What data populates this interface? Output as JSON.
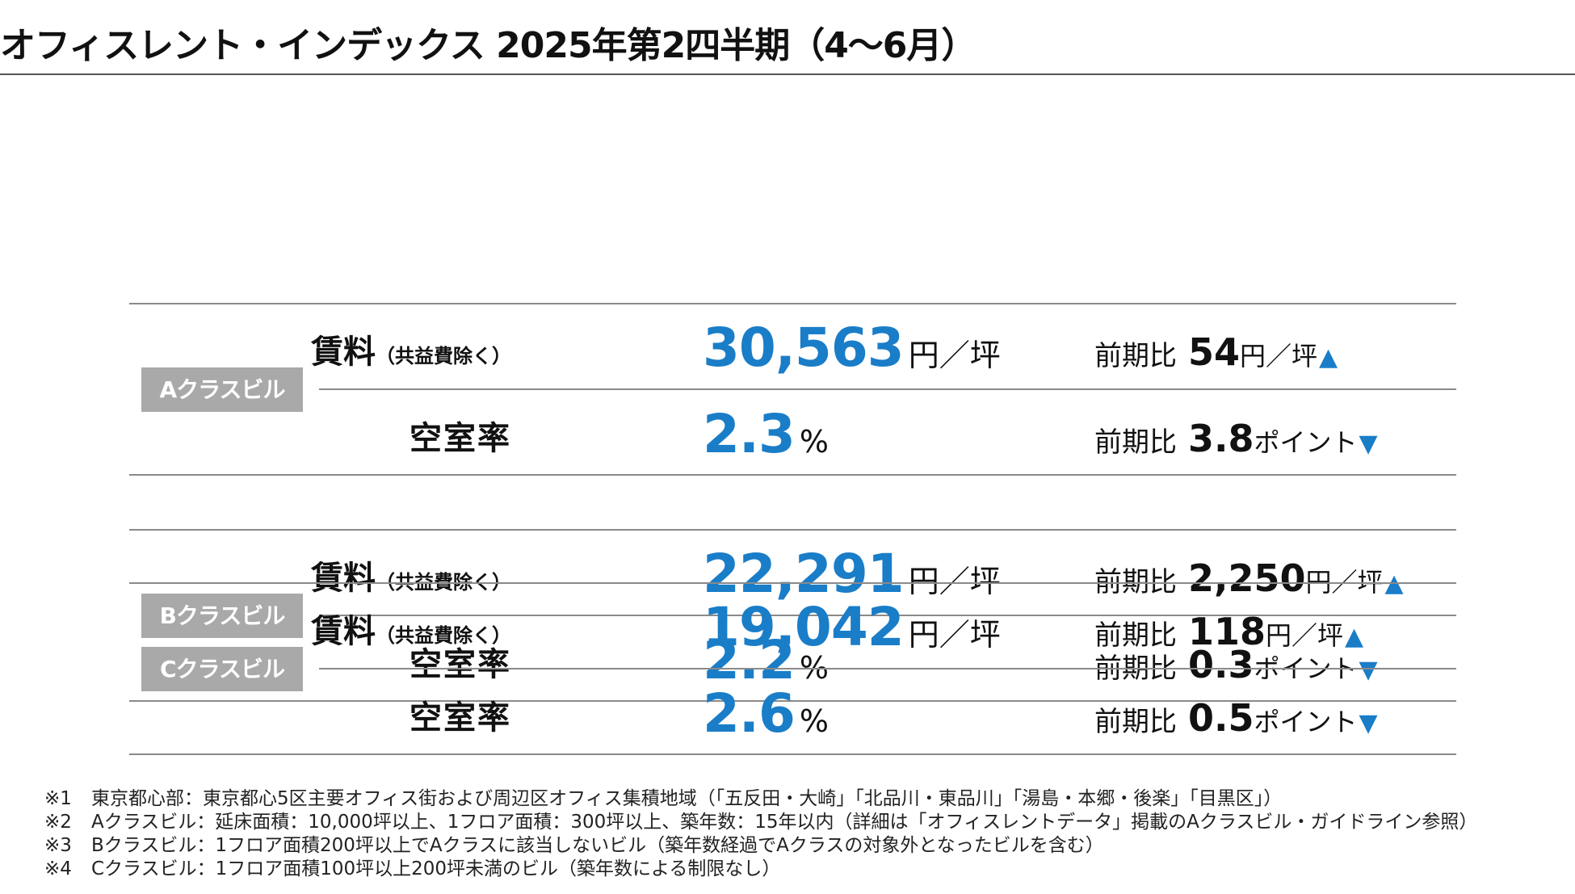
{
  "title": "オフィスレント・インデックス 2025年第2四半期（4～6月）",
  "colors": {
    "accent": "#1a7dc8",
    "badge": "#a9a9a9",
    "rule": "#8a8a8a"
  },
  "rent_label": "賃料",
  "rent_label_sub": "（共益費除く）",
  "vacancy_label": "空室率",
  "change_label": "前期比",
  "rent_unit": "円／坪",
  "vacancy_unit": "%",
  "point_unit": "ポイント",
  "blocks": [
    {
      "badge": "Aクラスビル",
      "rent": "30,563",
      "rent_change": "54",
      "rent_dir": "▲",
      "vacancy": "2.3",
      "vacancy_change": "3.8",
      "vacancy_dir": "▼"
    },
    {
      "badge": "Bクラスビル",
      "rent": "22,291",
      "rent_change": "2,250",
      "rent_dir": "▲",
      "vacancy": "2.2",
      "vacancy_change": "0.3",
      "vacancy_dir": "▼"
    },
    {
      "badge": "Cクラスビル",
      "rent": "19,042",
      "rent_change": "118",
      "rent_dir": "▲",
      "vacancy": "2.6",
      "vacancy_change": "0.5",
      "vacancy_dir": "▼"
    }
  ],
  "notes": [
    {
      "mark": "※1",
      "text": "東京都心部：東京都心5区主要オフィス街および周辺区オフィス集積地域（「五反田・大崎」「北品川・東品川」「湯島・本郷・後楽」「目黒区」）"
    },
    {
      "mark": "※2",
      "text": "Aクラスビル：延床面積：10,000坪以上、1フロア面積：300坪以上、築年数：15年以内（詳細は「オフィスレントデータ」掲載のAクラスビル・ガイドライン参照）"
    },
    {
      "mark": "※3",
      "text": "Bクラスビル：1フロア面積200坪以上でAクラスに該当しないビル（築年数経過でAクラスの対象外となったビルを含む）"
    },
    {
      "mark": "※4",
      "text": "Cクラスビル：1フロア面積100坪以上200坪未満のビル（築年数による制限なし）"
    }
  ]
}
